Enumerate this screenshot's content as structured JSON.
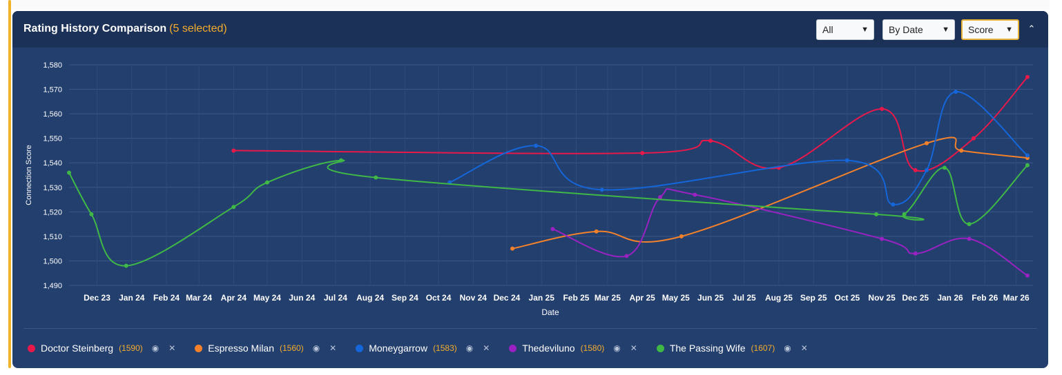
{
  "panel": {
    "title": "Rating History Comparison",
    "selected_label": "(5 selected)"
  },
  "controls": {
    "filter_value": "All",
    "sort_value": "By Date",
    "metric_value": "Score"
  },
  "colors": {
    "accent": "#f0b429",
    "panel_bg": "#233f6e",
    "header_bg": "#1b3157"
  },
  "icons": {
    "collapse": "chevron-up-icon",
    "visibility": "eye-icon",
    "remove": "close-icon"
  },
  "chart_data": {
    "type": "line",
    "xlabel": "Date",
    "ylabel": "Connection Score",
    "ylim": [
      1490,
      1580
    ],
    "yticks": [
      1490,
      1500,
      1510,
      1520,
      1530,
      1540,
      1550,
      1560,
      1570,
      1580
    ],
    "ytick_labels": [
      "1,490",
      "1,500",
      "1,510",
      "1,520",
      "1,530",
      "1,540",
      "1,550",
      "1,560",
      "1,570",
      "1,580"
    ],
    "xlim": [
      "2023-11-20",
      "2026-03-30"
    ],
    "xticks": [
      {
        "label": "Dec 23",
        "date": "2023-12-15"
      },
      {
        "label": "Jan 24",
        "date": "2024-01-15"
      },
      {
        "label": "Feb 24",
        "date": "2024-02-15"
      },
      {
        "label": "Mar 24",
        "date": "2024-03-15"
      },
      {
        "label": "Apr 24",
        "date": "2024-04-15"
      },
      {
        "label": "May 24",
        "date": "2024-05-15"
      },
      {
        "label": "Jun 24",
        "date": "2024-06-15"
      },
      {
        "label": "Jul 24",
        "date": "2024-07-15"
      },
      {
        "label": "Aug 24",
        "date": "2024-08-15"
      },
      {
        "label": "Sep 24",
        "date": "2024-09-15"
      },
      {
        "label": "Oct 24",
        "date": "2024-10-15"
      },
      {
        "label": "Nov 24",
        "date": "2024-11-15"
      },
      {
        "label": "Dec 24",
        "date": "2024-12-15"
      },
      {
        "label": "Jan 25",
        "date": "2025-01-15"
      },
      {
        "label": "Feb 25",
        "date": "2025-02-15"
      },
      {
        "label": "Mar 25",
        "date": "2025-03-15"
      },
      {
        "label": "Apr 25",
        "date": "2025-04-15"
      },
      {
        "label": "May 25",
        "date": "2025-05-15"
      },
      {
        "label": "Jun 25",
        "date": "2025-06-15"
      },
      {
        "label": "Jul 25",
        "date": "2025-07-15"
      },
      {
        "label": "Aug 25",
        "date": "2025-08-15"
      },
      {
        "label": "Sep 25",
        "date": "2025-09-15"
      },
      {
        "label": "Oct 25",
        "date": "2025-10-15"
      },
      {
        "label": "Nov 25",
        "date": "2025-11-15"
      },
      {
        "label": "Dec 25",
        "date": "2025-12-15"
      },
      {
        "label": "Jan 26",
        "date": "2026-01-15"
      },
      {
        "label": "Feb 26",
        "date": "2026-02-15"
      },
      {
        "label": "Mar 26",
        "date": "2026-03-15"
      }
    ],
    "grid": true,
    "legend_position": "bottom",
    "series": [
      {
        "name": "Doctor Steinberg",
        "legend_score": "(1590)",
        "color": "#e8194a",
        "points": [
          {
            "date": "2024-04-15",
            "value": 1545
          },
          {
            "date": "2025-04-15",
            "value": 1544
          },
          {
            "date": "2025-06-15",
            "value": 1549
          },
          {
            "date": "2025-08-15",
            "value": 1538
          },
          {
            "date": "2025-11-15",
            "value": 1562
          },
          {
            "date": "2025-12-15",
            "value": 1537
          },
          {
            "date": "2026-02-05",
            "value": 1550
          },
          {
            "date": "2026-03-25",
            "value": 1575
          }
        ]
      },
      {
        "name": "Espresso Milan",
        "legend_score": "(1560)",
        "color": "#f5822a",
        "points": [
          {
            "date": "2024-12-20",
            "value": 1505
          },
          {
            "date": "2025-03-05",
            "value": 1512
          },
          {
            "date": "2025-05-20",
            "value": 1510
          },
          {
            "date": "2025-12-25",
            "value": 1548
          },
          {
            "date": "2026-01-25",
            "value": 1545
          },
          {
            "date": "2026-03-25",
            "value": 1542
          }
        ]
      },
      {
        "name": "Moneygarrow",
        "legend_score": "(1583)",
        "color": "#1466d9",
        "points": [
          {
            "date": "2024-10-25",
            "value": 1532
          },
          {
            "date": "2025-01-10",
            "value": 1547
          },
          {
            "date": "2025-03-10",
            "value": 1529
          },
          {
            "date": "2025-10-15",
            "value": 1541
          },
          {
            "date": "2025-11-25",
            "value": 1523
          },
          {
            "date": "2025-12-25",
            "value": 1537
          },
          {
            "date": "2026-01-20",
            "value": 1569
          },
          {
            "date": "2026-03-25",
            "value": 1543
          }
        ]
      },
      {
        "name": "Thedeviluno",
        "legend_score": "(1580)",
        "color": "#9a22c2",
        "points": [
          {
            "date": "2025-01-25",
            "value": 1513
          },
          {
            "date": "2025-04-01",
            "value": 1502
          },
          {
            "date": "2025-05-01",
            "value": 1526
          },
          {
            "date": "2025-06-01",
            "value": 1527
          },
          {
            "date": "2025-11-15",
            "value": 1509
          },
          {
            "date": "2025-12-15",
            "value": 1503
          },
          {
            "date": "2026-02-01",
            "value": 1509
          },
          {
            "date": "2026-03-25",
            "value": 1494
          }
        ]
      },
      {
        "name": "The Passing Wife",
        "legend_score": "(1607)",
        "color": "#3fb846",
        "points": [
          {
            "date": "2023-11-20",
            "value": 1536
          },
          {
            "date": "2023-12-10",
            "value": 1519
          },
          {
            "date": "2024-01-10",
            "value": 1498
          },
          {
            "date": "2024-04-15",
            "value": 1522
          },
          {
            "date": "2024-05-15",
            "value": 1532
          },
          {
            "date": "2024-07-20",
            "value": 1541
          },
          {
            "date": "2024-08-20",
            "value": 1534
          },
          {
            "date": "2025-11-10",
            "value": 1519
          },
          {
            "date": "2025-12-05",
            "value": 1519
          },
          {
            "date": "2026-01-10",
            "value": 1538
          },
          {
            "date": "2026-02-01",
            "value": 1515
          },
          {
            "date": "2026-03-25",
            "value": 1539
          }
        ]
      }
    ]
  }
}
